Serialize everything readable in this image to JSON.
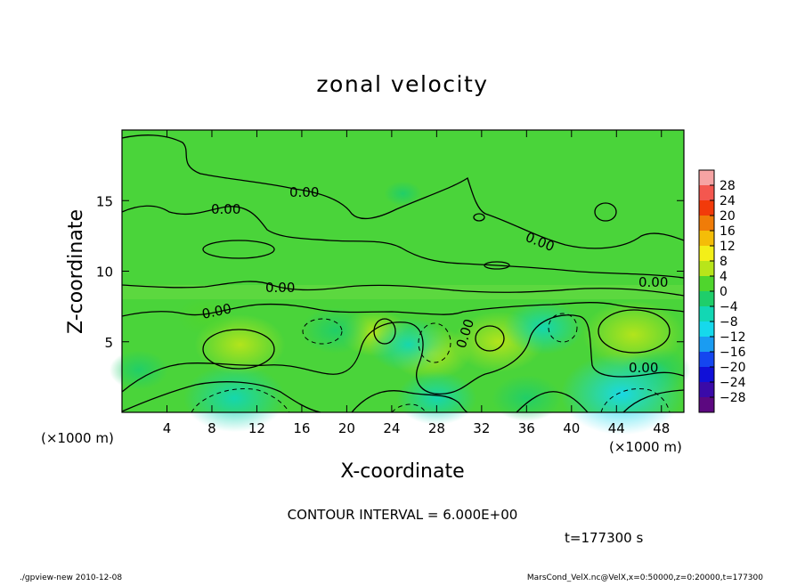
{
  "chart_data": {
    "type": "heatmap",
    "title": "zonal velocity",
    "xlabel": "X-coordinate",
    "ylabel": "Z-coordinate",
    "x_unit_label": "(×1000 m)",
    "x_unit_label_right": "(×1000 m)",
    "xlim": [
      0,
      50
    ],
    "ylim": [
      0,
      20
    ],
    "x_ticks": [
      4,
      8,
      12,
      16,
      20,
      24,
      28,
      32,
      36,
      40,
      44,
      48
    ],
    "y_ticks": [
      5,
      10,
      15
    ],
    "contour_label": "0.00",
    "contour_interval_text": "CONTOUR INTERVAL = 6.000E+00",
    "time_text": "t=177300 s",
    "colorbar": {
      "levels": [
        28,
        24,
        20,
        16,
        12,
        8,
        4,
        0,
        -4,
        -8,
        -12,
        -16,
        -20,
        -24,
        -28
      ],
      "colors": [
        "#f6a3a3",
        "#f4574f",
        "#f23a0a",
        "#f07c08",
        "#f4bd08",
        "#f3ef18",
        "#b8e51a",
        "#4fd52d",
        "#1fce6a",
        "#12d7b4",
        "#16d9ec",
        "#1a9cf2",
        "#1446f0",
        "#1010d8",
        "#3a0aa8",
        "#5c0880"
      ]
    },
    "field_base_color": "#4ad43a",
    "features": [
      {
        "x": 10.5,
        "z": 4.8,
        "value": 6,
        "sign": "positive"
      },
      {
        "x": 27.5,
        "z": 4.2,
        "value": 5,
        "sign": "positive"
      },
      {
        "x": 33.5,
        "z": 5.0,
        "value": 6,
        "sign": "positive"
      },
      {
        "x": 45.5,
        "z": 5.5,
        "value": 7,
        "sign": "positive"
      },
      {
        "x": 22.5,
        "z": 5.6,
        "value": 4,
        "sign": "positive"
      },
      {
        "x": 7.5,
        "z": 6.8,
        "value": 3,
        "sign": "positive"
      },
      {
        "x": 19.0,
        "z": 5.8,
        "value": -4,
        "sign": "negative"
      },
      {
        "x": 25.5,
        "z": 4.8,
        "value": -5,
        "sign": "negative"
      },
      {
        "x": 37.5,
        "z": 6.0,
        "value": -5,
        "sign": "negative"
      },
      {
        "x": 47.5,
        "z": 3.0,
        "value": -4,
        "sign": "negative"
      },
      {
        "x": 10.0,
        "z": 1.0,
        "value": -7,
        "sign": "negative"
      },
      {
        "x": 44.5,
        "z": 1.3,
        "value": -9,
        "sign": "negative"
      },
      {
        "x": 28.0,
        "z": 1.0,
        "value": -5,
        "sign": "negative"
      },
      {
        "x": 36.0,
        "z": 1.0,
        "value": -4,
        "sign": "negative"
      },
      {
        "x": 1.5,
        "z": 3.0,
        "value": -3,
        "sign": "negative"
      },
      {
        "x": 25.0,
        "z": 15.5,
        "value": -1,
        "sign": "negative"
      }
    ]
  },
  "footer": {
    "left": "./gpview-new  2010-12-08",
    "right": "MarsCond_VelX.nc@VelX,x=0:50000,z=0:20000,t=177300"
  }
}
